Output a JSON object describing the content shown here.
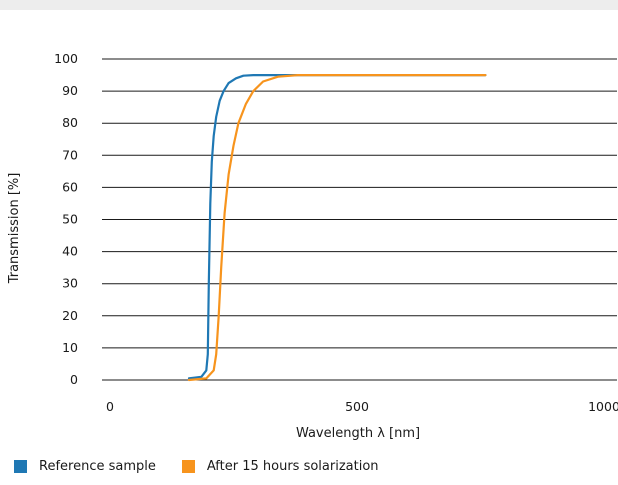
{
  "chart_data": {
    "type": "line",
    "title": "",
    "xlabel": "Wavelength λ [nm]",
    "ylabel": "Transmission [%]",
    "xlim": [
      0,
      1000
    ],
    "ylim": [
      0,
      100
    ],
    "x_ticks": [
      0,
      500,
      1000
    ],
    "x_tick_labels": [
      "0",
      "500",
      "1000"
    ],
    "y_ticks": [
      0,
      10,
      20,
      30,
      40,
      50,
      60,
      70,
      80,
      90,
      100
    ],
    "y_tick_labels": [
      "0",
      "10",
      "20",
      "30",
      "40",
      "50",
      "60",
      "70",
      "80",
      "90",
      "100"
    ],
    "grid": "horizontal",
    "legend_position": "bottom-left",
    "series": [
      {
        "name": "Reference sample",
        "color": "#1f78b4",
        "x": [
          160,
          185,
          195,
          198,
          200,
          203,
          206,
          210,
          215,
          222,
          230,
          240,
          255,
          270,
          290,
          320,
          380,
          500,
          700,
          760
        ],
        "y": [
          0.5,
          1,
          3,
          8,
          30,
          55,
          68,
          76,
          82,
          87,
          90,
          92.5,
          94,
          94.8,
          95,
          95,
          95,
          95,
          95,
          95
        ]
      },
      {
        "name": "After 15 hours solarization",
        "color": "#f7941d",
        "x": [
          160,
          195,
          210,
          215,
          220,
          225,
          232,
          240,
          250,
          260,
          275,
          290,
          310,
          340,
          380,
          450,
          550,
          700,
          760
        ],
        "y": [
          0,
          0.5,
          3,
          8,
          20,
          35,
          52,
          64,
          73,
          80,
          86,
          90,
          93,
          94.5,
          95,
          95,
          95,
          95,
          95
        ]
      }
    ]
  }
}
